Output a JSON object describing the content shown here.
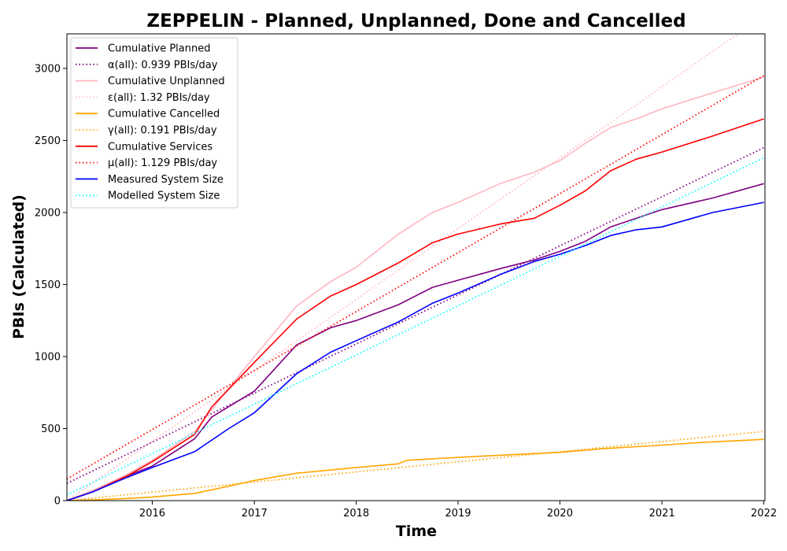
{
  "chart_data": {
    "type": "line",
    "title": "ZEPPELIN - Planned, Unplanned, Done  and Cancelled",
    "xlabel": "Time",
    "ylabel": "PBIs (Calculated)",
    "xlim": [
      "2015-03-01",
      "2022-01-05"
    ],
    "ylim": [
      0,
      3240
    ],
    "x_ticks": [
      {
        "label": "2016",
        "date": "2016-01-01"
      },
      {
        "label": "2017",
        "date": "2017-01-01"
      },
      {
        "label": "2018",
        "date": "2018-01-01"
      },
      {
        "label": "2019",
        "date": "2019-01-01"
      },
      {
        "label": "2020",
        "date": "2020-01-01"
      },
      {
        "label": "2021",
        "date": "2021-01-01"
      },
      {
        "label": "2022",
        "date": "2022-01-01"
      }
    ],
    "y_ticks": [
      0,
      500,
      1000,
      1500,
      2000,
      2500,
      3000
    ],
    "grid": false,
    "legend_position": "top-left",
    "series": [
      {
        "name": "Cumulative Planned",
        "color": "#800080",
        "style": "solid",
        "points": [
          [
            "2015-03-01",
            0
          ],
          [
            "2015-06-01",
            70
          ],
          [
            "2015-10-01",
            170
          ],
          [
            "2016-01-01",
            240
          ],
          [
            "2016-06-01",
            430
          ],
          [
            "2016-08-01",
            580
          ],
          [
            "2017-01-01",
            760
          ],
          [
            "2017-06-01",
            1080
          ],
          [
            "2017-10-01",
            1200
          ],
          [
            "2018-01-01",
            1250
          ],
          [
            "2018-06-01",
            1360
          ],
          [
            "2018-10-01",
            1480
          ],
          [
            "2019-01-01",
            1530
          ],
          [
            "2019-06-01",
            1610
          ],
          [
            "2019-10-01",
            1670
          ],
          [
            "2020-01-01",
            1730
          ],
          [
            "2020-04-01",
            1800
          ],
          [
            "2020-07-01",
            1900
          ],
          [
            "2020-10-01",
            1960
          ],
          [
            "2021-01-01",
            2020
          ],
          [
            "2021-07-01",
            2100
          ],
          [
            "2022-01-01",
            2200
          ]
        ]
      },
      {
        "name": "α(all): 0.939 PBIs/day",
        "color": "#800080",
        "style": "dotted",
        "points": [
          [
            "2015-03-01",
            120
          ],
          [
            "2022-01-01",
            2450
          ]
        ]
      },
      {
        "name": "Cumulative Unplanned",
        "color": "#ffb6c1",
        "style": "solid",
        "points": [
          [
            "2015-03-01",
            0
          ],
          [
            "2015-06-01",
            70
          ],
          [
            "2015-10-01",
            180
          ],
          [
            "2016-01-01",
            280
          ],
          [
            "2016-06-01",
            480
          ],
          [
            "2016-10-01",
            780
          ],
          [
            "2017-01-01",
            1000
          ],
          [
            "2017-06-01",
            1350
          ],
          [
            "2017-10-01",
            1520
          ],
          [
            "2018-01-01",
            1620
          ],
          [
            "2018-06-01",
            1850
          ],
          [
            "2018-10-01",
            2000
          ],
          [
            "2019-01-01",
            2070
          ],
          [
            "2019-06-01",
            2200
          ],
          [
            "2019-10-01",
            2280
          ],
          [
            "2020-01-01",
            2360
          ],
          [
            "2020-04-01",
            2480
          ],
          [
            "2020-07-01",
            2590
          ],
          [
            "2020-10-01",
            2650
          ],
          [
            "2021-01-01",
            2720
          ],
          [
            "2021-07-01",
            2830
          ],
          [
            "2022-01-01",
            2940
          ]
        ]
      },
      {
        "name": "ε(all): 1.32 PBIs/day",
        "color": "#ffb6c1",
        "style": "dotted",
        "points": [
          [
            "2015-03-01",
            0
          ],
          [
            "2021-10-01",
            3240
          ]
        ]
      },
      {
        "name": "Cumulative Cancelled",
        "color": "#ffa500",
        "style": "solid",
        "points": [
          [
            "2015-03-01",
            0
          ],
          [
            "2015-06-01",
            5
          ],
          [
            "2015-10-01",
            15
          ],
          [
            "2016-01-01",
            25
          ],
          [
            "2016-06-01",
            50
          ],
          [
            "2016-10-01",
            100
          ],
          [
            "2017-01-01",
            140
          ],
          [
            "2017-06-01",
            190
          ],
          [
            "2018-01-01",
            230
          ],
          [
            "2018-06-01",
            255
          ],
          [
            "2018-07-01",
            280
          ],
          [
            "2019-01-01",
            300
          ],
          [
            "2019-06-01",
            315
          ],
          [
            "2020-01-01",
            335
          ],
          [
            "2020-06-01",
            360
          ],
          [
            "2021-01-01",
            385
          ],
          [
            "2021-06-01",
            405
          ],
          [
            "2022-01-01",
            425
          ]
        ]
      },
      {
        "name": "γ(all): 0.191 PBIs/day",
        "color": "#ffa500",
        "style": "dotted",
        "points": [
          [
            "2015-03-01",
            0
          ],
          [
            "2022-01-01",
            480
          ]
        ]
      },
      {
        "name": "Cumulative Services",
        "color": "#ff0000",
        "style": "solid",
        "points": [
          [
            "2015-03-01",
            0
          ],
          [
            "2015-06-01",
            60
          ],
          [
            "2015-10-01",
            170
          ],
          [
            "2016-01-01",
            270
          ],
          [
            "2016-06-01",
            460
          ],
          [
            "2016-08-01",
            650
          ],
          [
            "2017-01-01",
            960
          ],
          [
            "2017-06-01",
            1260
          ],
          [
            "2017-10-01",
            1420
          ],
          [
            "2018-01-01",
            1500
          ],
          [
            "2018-06-01",
            1650
          ],
          [
            "2018-10-01",
            1790
          ],
          [
            "2019-01-01",
            1850
          ],
          [
            "2019-06-01",
            1920
          ],
          [
            "2019-10-01",
            1960
          ],
          [
            "2020-01-01",
            2050
          ],
          [
            "2020-04-01",
            2150
          ],
          [
            "2020-07-01",
            2290
          ],
          [
            "2020-10-01",
            2370
          ],
          [
            "2021-01-01",
            2420
          ],
          [
            "2021-07-01",
            2530
          ],
          [
            "2022-01-01",
            2650
          ]
        ]
      },
      {
        "name": "μ(all): 1.129 PBIs/day",
        "color": "#ff0000",
        "style": "dotted",
        "points": [
          [
            "2015-03-01",
            150
          ],
          [
            "2022-01-01",
            2950
          ]
        ]
      },
      {
        "name": "Measured System Size",
        "color": "#0000ff",
        "style": "solid",
        "points": [
          [
            "2015-03-01",
            0
          ],
          [
            "2015-06-01",
            60
          ],
          [
            "2015-10-01",
            160
          ],
          [
            "2016-01-01",
            230
          ],
          [
            "2016-06-01",
            340
          ],
          [
            "2016-10-01",
            500
          ],
          [
            "2017-01-01",
            610
          ],
          [
            "2017-06-01",
            880
          ],
          [
            "2017-10-01",
            1030
          ],
          [
            "2018-01-01",
            1110
          ],
          [
            "2018-06-01",
            1240
          ],
          [
            "2018-10-01",
            1370
          ],
          [
            "2019-01-01",
            1440
          ],
          [
            "2019-06-01",
            1570
          ],
          [
            "2019-10-01",
            1660
          ],
          [
            "2020-01-01",
            1710
          ],
          [
            "2020-04-01",
            1770
          ],
          [
            "2020-07-01",
            1840
          ],
          [
            "2020-10-01",
            1880
          ],
          [
            "2021-01-01",
            1900
          ],
          [
            "2021-07-01",
            2000
          ],
          [
            "2022-01-01",
            2070
          ]
        ]
      },
      {
        "name": "Modelled System Size",
        "color": "#00ffff",
        "style": "dotted",
        "points": [
          [
            "2015-03-01",
            40
          ],
          [
            "2022-01-01",
            2380
          ]
        ]
      }
    ]
  }
}
